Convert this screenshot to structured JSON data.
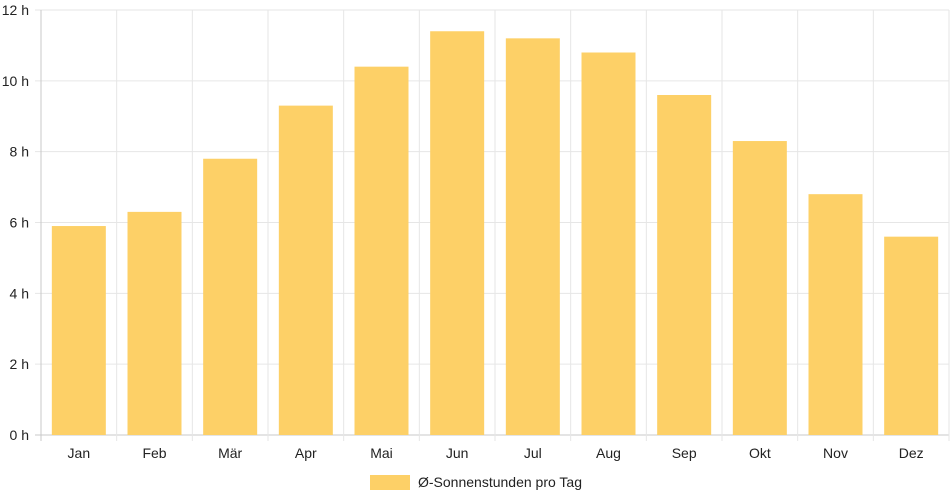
{
  "chart_data": {
    "type": "bar",
    "categories": [
      "Jan",
      "Feb",
      "Mär",
      "Apr",
      "Mai",
      "Jun",
      "Jul",
      "Aug",
      "Sep",
      "Okt",
      "Nov",
      "Dez"
    ],
    "series": [
      {
        "name": "Ø-Sonnenstunden pro Tag",
        "values": [
          5.9,
          6.3,
          7.8,
          9.3,
          10.4,
          11.4,
          11.2,
          10.8,
          9.6,
          8.3,
          6.8,
          5.6
        ]
      }
    ],
    "ylim": [
      0,
      12
    ],
    "yticks": [
      {
        "value": 0,
        "label": "0 h"
      },
      {
        "value": 2,
        "label": "2 h"
      },
      {
        "value": 4,
        "label": "4 h"
      },
      {
        "value": 6,
        "label": "6 h"
      },
      {
        "value": 8,
        "label": "8 h"
      },
      {
        "value": 10,
        "label": "10 h"
      },
      {
        "value": 12,
        "label": "12 h"
      }
    ],
    "grid": true,
    "legend": "bottom",
    "colors": {
      "bar": "#fdd067",
      "grid": "#e6e6e6",
      "axis": "#c8c8c8",
      "text": "#222222"
    }
  }
}
